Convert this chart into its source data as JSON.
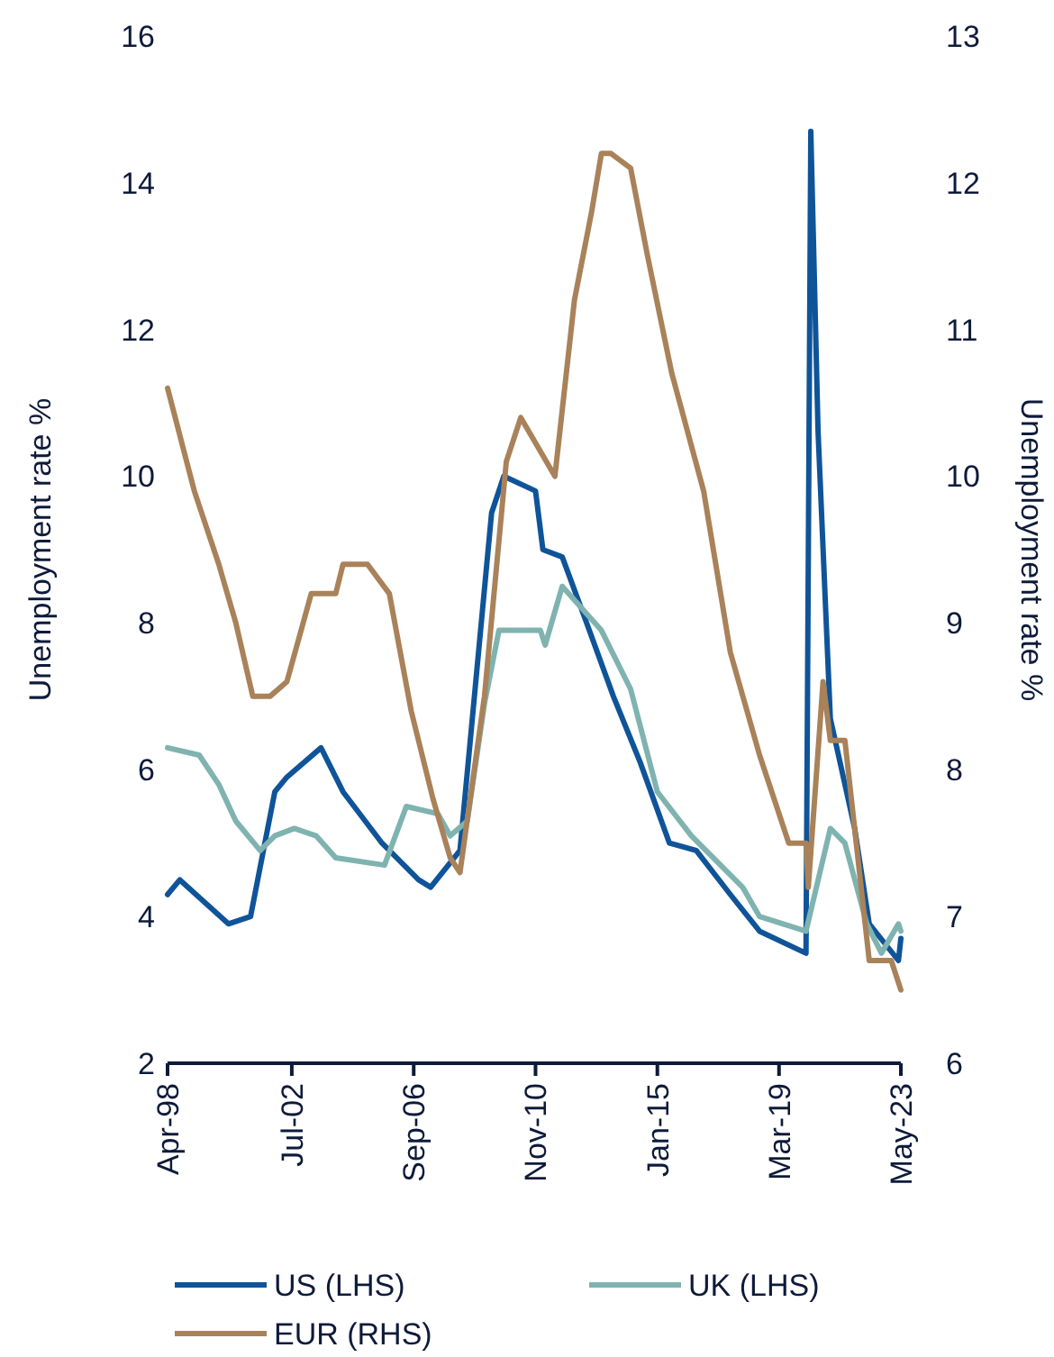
{
  "chart_data": {
    "type": "line",
    "ylabel": "Unemployment rate %",
    "y2label": "Unemployment rate %",
    "xlim": [
      "1998-04",
      "2023-05"
    ],
    "xticks": [
      {
        "value": "1998-04",
        "label": "Apr-98"
      },
      {
        "value": "2002-07",
        "label": "Jul-02"
      },
      {
        "value": "2006-09",
        "label": "Sep-06"
      },
      {
        "value": "2010-11",
        "label": "Nov-10"
      },
      {
        "value": "2015-01",
        "label": "Jan-15"
      },
      {
        "value": "2019-03",
        "label": "Mar-19"
      },
      {
        "value": "2023-05",
        "label": "May-23"
      }
    ],
    "ylim": [
      2,
      16
    ],
    "yticks": [
      2,
      4,
      6,
      8,
      10,
      12,
      14,
      16
    ],
    "y2lim": [
      6,
      13
    ],
    "y2ticks": [
      6,
      7,
      8,
      9,
      10,
      11,
      12,
      13
    ],
    "grid": false,
    "legend": "bottom",
    "line_style": "solid",
    "marker": "none",
    "series": [
      {
        "name": "US (LHS)",
        "color": "#0f5499",
        "x": [
          "1998-04",
          "1998-09",
          "2000-05",
          "2001-02",
          "2001-12",
          "2002-05",
          "2003-07",
          "2004-04",
          "2005-08",
          "2006-11",
          "2007-04",
          "2008-04",
          "2009-05",
          "2009-10",
          "2010-11",
          "2011-02",
          "2011-10",
          "2012-08",
          "2013-07",
          "2014-06",
          "2015-06",
          "2016-05",
          "2017-07",
          "2018-07",
          "2020-02",
          "2020-04",
          "2020-07",
          "2020-12",
          "2021-10",
          "2022-04",
          "2023-04",
          "2023-05"
        ],
        "values": [
          4.3,
          4.5,
          3.9,
          4.0,
          5.7,
          5.9,
          6.3,
          5.7,
          5.0,
          4.5,
          4.4,
          4.9,
          9.5,
          10.0,
          9.8,
          9.0,
          8.9,
          8.0,
          7.0,
          6.1,
          5.0,
          4.9,
          4.3,
          3.8,
          3.5,
          14.7,
          10.6,
          6.7,
          5.2,
          3.9,
          3.4,
          3.7
        ]
      },
      {
        "name": "UK (LHS)",
        "color": "#7fb3b0",
        "x": [
          "1998-04",
          "1999-05",
          "2000-01",
          "2000-08",
          "2001-06",
          "2001-12",
          "2002-08",
          "2003-05",
          "2004-01",
          "2005-09",
          "2006-06",
          "2007-07",
          "2007-12",
          "2008-07",
          "2009-02",
          "2009-08",
          "2010-06",
          "2011-01",
          "2011-03",
          "2011-10",
          "2013-02",
          "2014-02",
          "2015-01",
          "2016-03",
          "2017-12",
          "2018-07",
          "2020-02",
          "2020-12",
          "2021-06",
          "2022-03",
          "2022-09",
          "2023-04",
          "2023-05"
        ],
        "values": [
          6.3,
          6.2,
          5.8,
          5.3,
          4.9,
          5.1,
          5.2,
          5.1,
          4.8,
          4.7,
          5.5,
          5.4,
          5.1,
          5.3,
          6.9,
          7.9,
          7.9,
          7.9,
          7.7,
          8.5,
          7.9,
          7.1,
          5.7,
          5.1,
          4.4,
          4.0,
          3.8,
          5.2,
          5.0,
          3.9,
          3.5,
          3.9,
          3.8
        ]
      },
      {
        "name": "EUR (RHS)",
        "color": "#a9825a",
        "axis": "y2",
        "x": [
          "1998-04",
          "1999-03",
          "2000-01",
          "2000-08",
          "2001-03",
          "2001-10",
          "2002-05",
          "2003-03",
          "2004-01",
          "2004-04",
          "2005-02",
          "2005-11",
          "2006-08",
          "2007-05",
          "2007-12",
          "2008-04",
          "2009-02",
          "2009-11",
          "2010-05",
          "2011-07",
          "2012-03",
          "2012-10",
          "2013-02",
          "2013-06",
          "2014-02",
          "2014-09",
          "2015-07",
          "2016-08",
          "2017-07",
          "2018-07",
          "2019-07",
          "2020-02",
          "2020-03",
          "2020-09",
          "2020-12",
          "2021-06",
          "2022-04",
          "2023-01",
          "2023-05"
        ],
        "values": [
          10.6,
          9.9,
          9.4,
          9.0,
          8.5,
          8.5,
          8.6,
          9.2,
          9.2,
          9.4,
          9.4,
          9.2,
          8.4,
          7.8,
          7.4,
          7.3,
          8.5,
          10.1,
          10.4,
          10.0,
          11.2,
          11.8,
          12.2,
          12.2,
          12.1,
          11.5,
          10.7,
          9.9,
          8.8,
          8.1,
          7.5,
          7.5,
          7.2,
          8.6,
          8.2,
          8.2,
          6.7,
          6.7,
          6.5
        ]
      }
    ]
  }
}
